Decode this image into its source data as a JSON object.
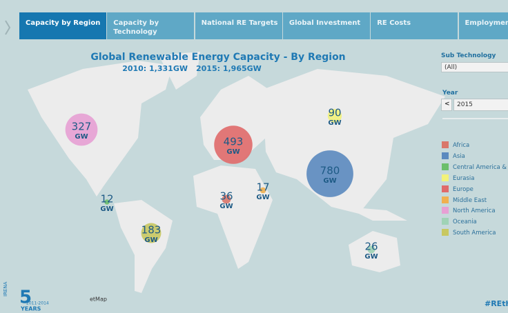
{
  "tabs": [
    "Capacity by Region",
    "Capacity by Technology",
    "National RE Targets",
    "Global Investment",
    "RE Costs",
    "Employment"
  ],
  "title": "Global Renewable Energy Capacity - By Region",
  "subtitle": {
    "y2010": "2010: 1,331GW",
    "y2015": "2015: 1,965GW"
  },
  "unit": "GW",
  "regions": [
    {
      "name": "Africa",
      "color": "#d9776b",
      "value": 36
    },
    {
      "name": "Asia",
      "color": "#5b8abf",
      "value": 780
    },
    {
      "name": "Central America & Ca",
      "color": "#6cbf6c",
      "value": 12
    },
    {
      "name": "Eurasia",
      "color": "#f2f27a",
      "value": 90
    },
    {
      "name": "Europe",
      "color": "#e06a6a",
      "value": 493
    },
    {
      "name": "Middle East",
      "color": "#f0b050",
      "value": 17
    },
    {
      "name": "North America",
      "color": "#e7a0d4",
      "value": 327
    },
    {
      "name": "Oceania",
      "color": "#9fd3b6",
      "value": 26
    },
    {
      "name": "South America",
      "color": "#c8c860",
      "value": 183
    }
  ],
  "filters": {
    "sub_technology_label": "Sub Technology",
    "sub_technology_value": "(All)",
    "year_label": "Year",
    "year_value": "2015"
  },
  "attribution": "etMap",
  "logo": {
    "org": "IRENA",
    "number": "5",
    "years": "YEARS",
    "range": "2011-2014"
  },
  "hashtag": "#REthe"
}
